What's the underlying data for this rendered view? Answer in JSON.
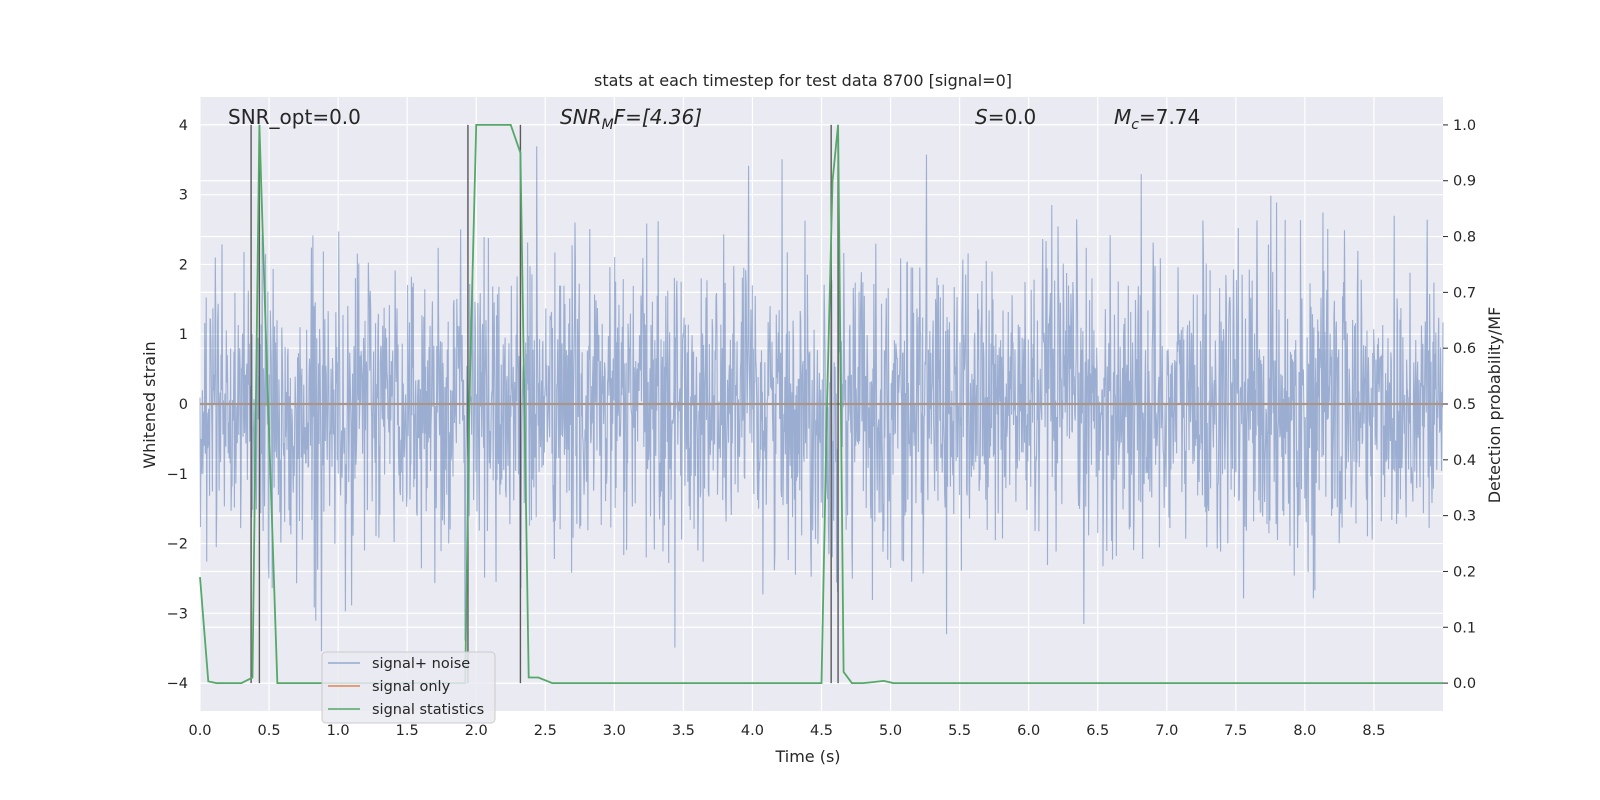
{
  "chart_data": {
    "type": "line",
    "title": "stats at each timestep for test data 8700 [signal=0]",
    "xlabel": "Time (s)",
    "ylabel": "Whitened strain",
    "ylabel_right": "Detection probability/MF",
    "xlim": [
      0.0,
      9.0
    ],
    "ylim": [
      -4.4,
      4.4
    ],
    "ylim_right": [
      -0.05,
      1.05
    ],
    "x_ticks": [
      0.0,
      0.5,
      1.0,
      1.5,
      2.0,
      2.5,
      3.0,
      3.5,
      4.0,
      4.5,
      5.0,
      5.5,
      6.0,
      6.5,
      7.0,
      7.5,
      8.0,
      8.5
    ],
    "x_tick_labels": [
      "0.0",
      "0.5",
      "1.0",
      "1.5",
      "2.0",
      "2.5",
      "3.0",
      "3.5",
      "4.0",
      "4.5",
      "5.0",
      "5.5",
      "6.0",
      "6.5",
      "7.0",
      "7.5",
      "8.0",
      "8.5"
    ],
    "y_ticks": [
      -4,
      -3,
      -2,
      -1,
      0,
      1,
      2,
      3,
      4
    ],
    "y_tick_labels": [
      "−4",
      "−3",
      "−2",
      "−1",
      "0",
      "1",
      "2",
      "3",
      "4"
    ],
    "y_right_ticks": [
      0.0,
      0.1,
      0.2,
      0.3,
      0.4,
      0.5,
      0.6,
      0.7,
      0.8,
      0.9,
      1.0
    ],
    "y_right_tick_labels": [
      "0.0",
      "0.1",
      "0.2",
      "0.3",
      "0.4",
      "0.5",
      "0.6",
      "0.7",
      "0.8",
      "0.9",
      "1.0"
    ],
    "grid": true,
    "legend_position": "lower-left",
    "annotations": {
      "snr_opt": "SNR_opt=0.0",
      "snr_mf_base": "SNR",
      "snr_mf_sub": "M",
      "snr_mf_rest": "F=[4.36]",
      "s_italic": "S",
      "s_rest": "=0.0",
      "mc_italic": "M",
      "mc_sub": "c",
      "mc_rest": "=7.74"
    },
    "series": [
      {
        "name": "signal+ noise",
        "color": "#4c72b0",
        "axis": "left",
        "description_values": "whitened noise, roughly within ±2 with spikes to ±4",
        "amplitude_typical": 1.6,
        "amplitude_max": 4.0
      },
      {
        "name": "signal only",
        "color": "#dd8452",
        "axis": "left",
        "x": [
          0.0,
          9.0
        ],
        "y": [
          0.0,
          0.0
        ]
      },
      {
        "name": "signal statistics",
        "color": "#55a868",
        "axis": "right",
        "x": [
          0.0,
          0.06,
          0.12,
          0.3,
          0.38,
          0.43,
          0.48,
          0.56,
          0.9,
          1.5,
          1.92,
          1.95,
          2.0,
          2.05,
          2.25,
          2.32,
          2.38,
          2.45,
          2.55,
          3.0,
          4.0,
          4.5,
          4.54,
          4.58,
          4.62,
          4.66,
          4.72,
          4.8,
          4.88,
          4.95,
          5.02,
          6.0,
          7.0,
          8.0,
          9.0
        ],
        "y": [
          0.19,
          0.003,
          0.0,
          0.0,
          0.01,
          1.0,
          0.6,
          0.0,
          0.0,
          0.0,
          0.0,
          0.5,
          1.0,
          1.0,
          1.0,
          0.95,
          0.01,
          0.01,
          0.0,
          0.0,
          0.0,
          0.0,
          0.5,
          0.9,
          1.0,
          0.02,
          0.0,
          0.0,
          0.002,
          0.004,
          0.0,
          0.0,
          0.0,
          0.0,
          0.0
        ]
      }
    ],
    "vertical_lines_x": [
      0.37,
      0.43,
      1.94,
      2.32,
      4.57,
      4.62
    ]
  },
  "colors": {
    "plot_bg": "#eaeaf2",
    "grid": "#ffffff",
    "noise": "#4c72b0",
    "signal_only": "#dd8452",
    "stats": "#55a868",
    "vline": "#5a5a5a"
  }
}
